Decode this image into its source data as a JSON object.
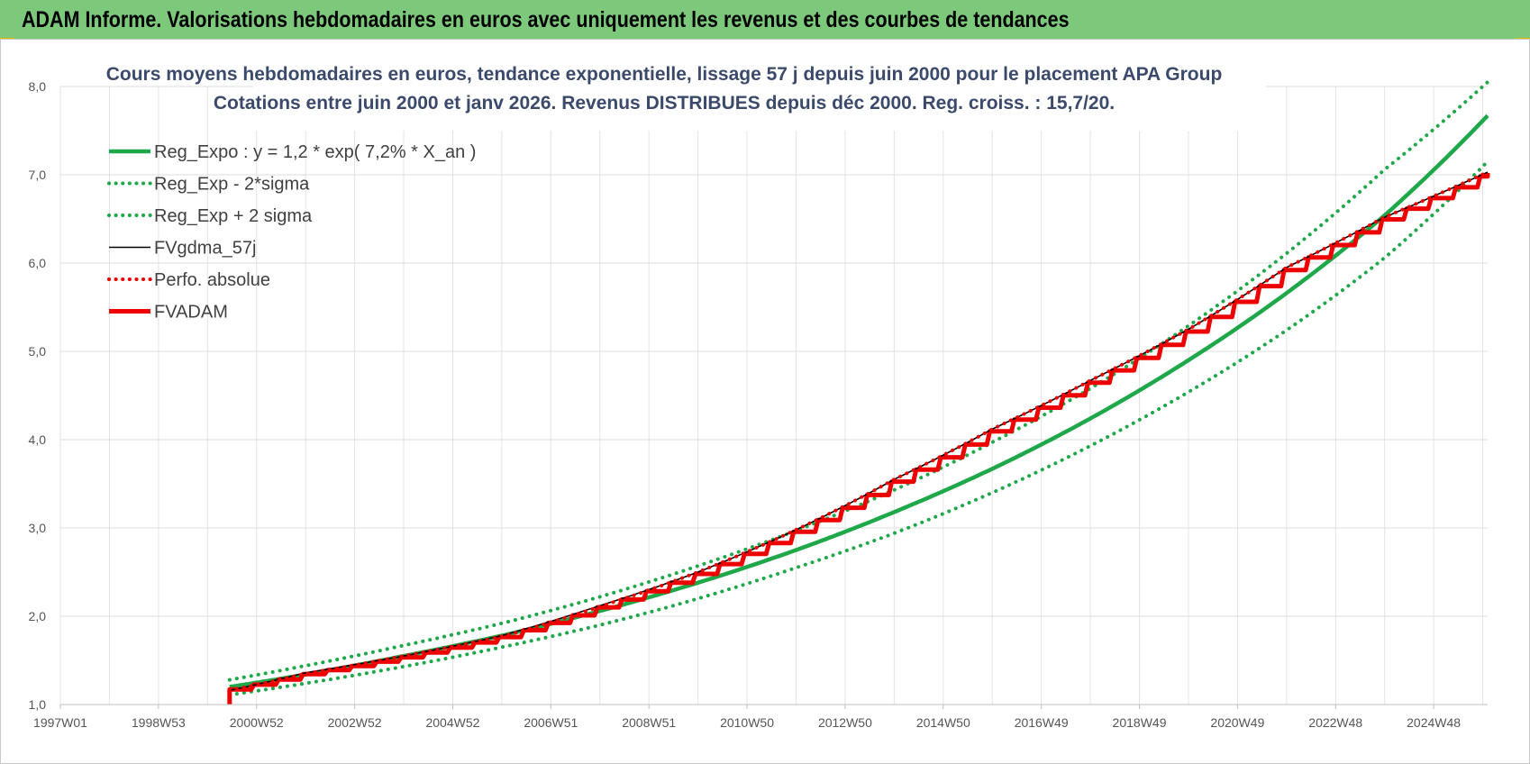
{
  "header": {
    "title": "ADAM Informe. Valorisations hebdomadaires en euros avec uniquement les revenus et des courbes de tendances"
  },
  "colors": {
    "header_bg": "#7dc97b",
    "green": "#1fa84a",
    "red": "#ee0000",
    "black": "#000000"
  },
  "chart_data": {
    "type": "line",
    "title": "Cours moyens hebdomadaires en euros, tendance exponentielle, lissage 57 j depuis juin 2000 pour le placement APA Group",
    "subtitle": "Cotations entre juin 2000 et janv 2026. Revenus DISTRIBUES depuis déc 2000. Reg. croiss. : 15,7/20.",
    "x_tick_labels": [
      "1997W01",
      "1998W53",
      "2000W52",
      "2002W52",
      "2004W52",
      "2006W51",
      "2008W51",
      "2010W50",
      "2012W50",
      "2014W50",
      "2016W49",
      "2018W49",
      "2020W49",
      "2022W48",
      "2024W48"
    ],
    "x_tick_years": [
      1997.0,
      1999.0,
      2001.0,
      2003.0,
      2005.0,
      2007.0,
      2009.0,
      2011.0,
      2013.0,
      2015.0,
      2017.0,
      2019.0,
      2021.0,
      2023.0,
      2025.0
    ],
    "xlim": [
      1997.0,
      2026.1
    ],
    "ylim": [
      1.0,
      8.0
    ],
    "y_ticks": [
      1.0,
      2.0,
      3.0,
      4.0,
      5.0,
      6.0,
      7.0,
      8.0
    ],
    "y_tick_labels": [
      "1,0",
      "2,0",
      "3,0",
      "4,0",
      "5,0",
      "6,0",
      "7,0",
      "8,0"
    ],
    "grid": true,
    "legend_position": "top-left",
    "series": [
      {
        "name": "Reg_Expo : y = 1,2 * exp( 7,2% *  X_an )",
        "style": "solid-thick",
        "color": "#1fa84a",
        "x": [
          2000.45,
          2002,
          2004,
          2006,
          2008,
          2010,
          2012,
          2014,
          2016,
          2018,
          2020,
          2022,
          2024,
          2026.1
        ],
        "y": [
          1.2,
          1.34,
          1.55,
          1.78,
          2.06,
          2.38,
          2.75,
          3.18,
          3.67,
          4.24,
          4.9,
          5.66,
          6.54,
          7.67
        ]
      },
      {
        "name": "Reg_Exp - 2*sigma",
        "style": "dotted",
        "color": "#1fa84a",
        "x": [
          2000.45,
          2002,
          2004,
          2006,
          2008,
          2010,
          2012,
          2014,
          2016,
          2018,
          2020,
          2022,
          2024,
          2026.1
        ],
        "y": [
          1.11,
          1.24,
          1.43,
          1.65,
          1.9,
          2.2,
          2.55,
          2.94,
          3.4,
          3.93,
          4.54,
          5.24,
          6.06,
          7.15
        ]
      },
      {
        "name": "Reg_Exp + 2 sigma",
        "style": "dotted",
        "color": "#1fa84a",
        "x": [
          2000.45,
          2002,
          2004,
          2006,
          2008,
          2010,
          2012,
          2014,
          2016,
          2018,
          2020,
          2022,
          2024,
          2026.1
        ],
        "y": [
          1.28,
          1.44,
          1.67,
          1.92,
          2.22,
          2.57,
          2.97,
          3.43,
          3.97,
          4.58,
          5.29,
          6.11,
          7.06,
          8.05
        ]
      },
      {
        "name": "FVgdma_57j",
        "style": "solid-thin",
        "color": "#000000",
        "x": [
          2000.45,
          2002,
          2004,
          2006,
          2008,
          2010,
          2012,
          2014,
          2016,
          2018,
          2020,
          2022,
          2024,
          2026.1
        ],
        "y": [
          1.16,
          1.36,
          1.55,
          1.78,
          2.12,
          2.5,
          2.98,
          3.55,
          4.12,
          4.67,
          5.25,
          5.95,
          6.52,
          7.03
        ]
      },
      {
        "name": "Perfo. absolue",
        "style": "dotted",
        "color": "#ee0000",
        "x": [
          2000.45,
          2002,
          2004,
          2006,
          2008,
          2010,
          2012,
          2014,
          2016,
          2018,
          2020,
          2022,
          2024,
          2026.1
        ],
        "y": [
          1.16,
          1.35,
          1.55,
          1.77,
          2.11,
          2.5,
          2.98,
          3.55,
          4.12,
          4.67,
          5.25,
          5.95,
          6.52,
          7.03
        ]
      },
      {
        "name": "FVADAM",
        "style": "step-thick",
        "color": "#ee0000",
        "x": [
          2000.45,
          2002,
          2004,
          2006,
          2008,
          2010,
          2012,
          2014,
          2016,
          2018,
          2020,
          2022,
          2024,
          2026.1
        ],
        "y": [
          1.17,
          1.35,
          1.54,
          1.77,
          2.11,
          2.49,
          2.97,
          3.54,
          4.11,
          4.66,
          5.24,
          5.94,
          6.51,
          7.02
        ]
      }
    ]
  }
}
